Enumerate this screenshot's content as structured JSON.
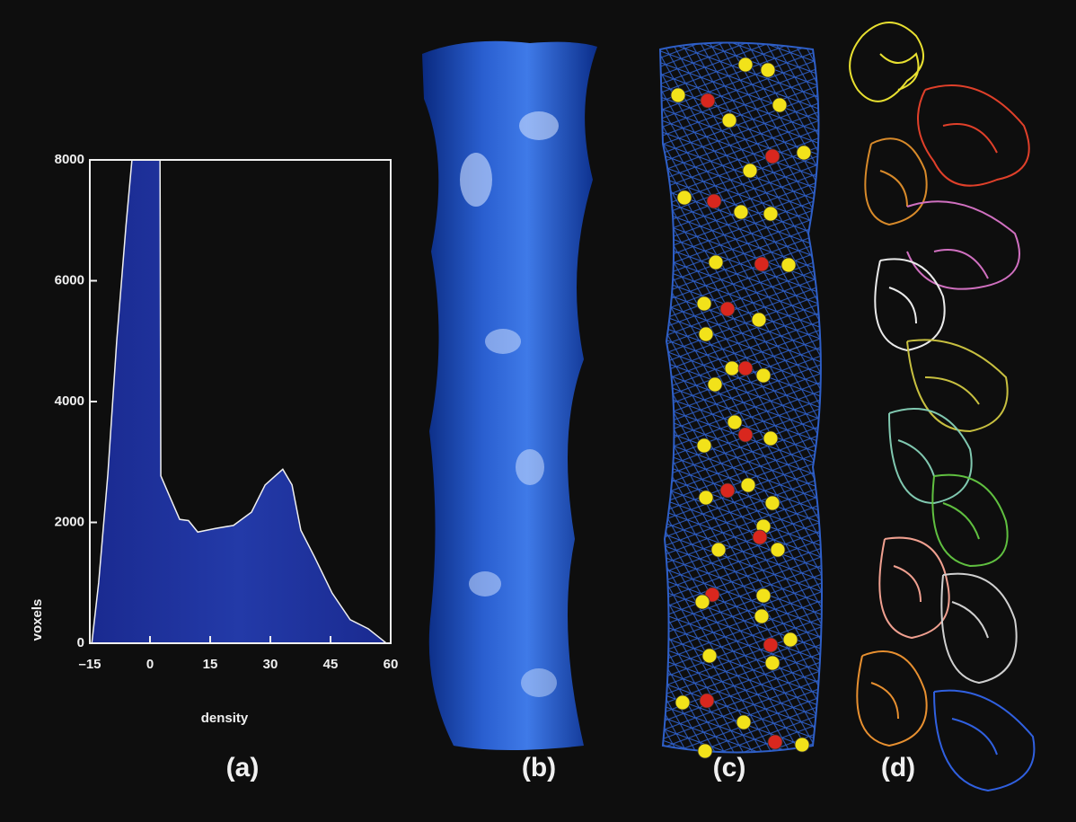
{
  "chart_data": {
    "type": "area",
    "x": [
      -14.5,
      -12.8,
      -10.5,
      -8.3,
      -6,
      -4.5,
      2.5,
      2.7,
      5.1,
      7.4,
      9.6,
      11.9,
      16.3,
      20.8,
      25.3,
      28.7,
      33.1,
      35.4,
      37.6,
      41,
      45.4,
      49.9,
      54.4,
      57.8,
      58.9
    ],
    "values": [
      0,
      1000,
      2800,
      5000,
      6900,
      8000,
      8000,
      2770,
      2400,
      2050,
      2030,
      1840,
      1900,
      1950,
      2170,
      2620,
      2880,
      2620,
      1870,
      1430,
      830,
      390,
      240,
      60,
      0
    ],
    "color": "#1e2f96",
    "xlabel": "density",
    "ylabel": "voxels",
    "xlim": [
      -15,
      60
    ],
    "xticks": [
      {
        "value": -15,
        "label": "–15"
      },
      0,
      15,
      30,
      45,
      60
    ],
    "ylim": [
      0,
      8000
    ],
    "yticks": [
      0,
      2000,
      4000,
      6000,
      8000
    ],
    "grid": false
  },
  "panel_labels": [
    "(a)",
    "(b)",
    "(c)",
    "(d)"
  ]
}
